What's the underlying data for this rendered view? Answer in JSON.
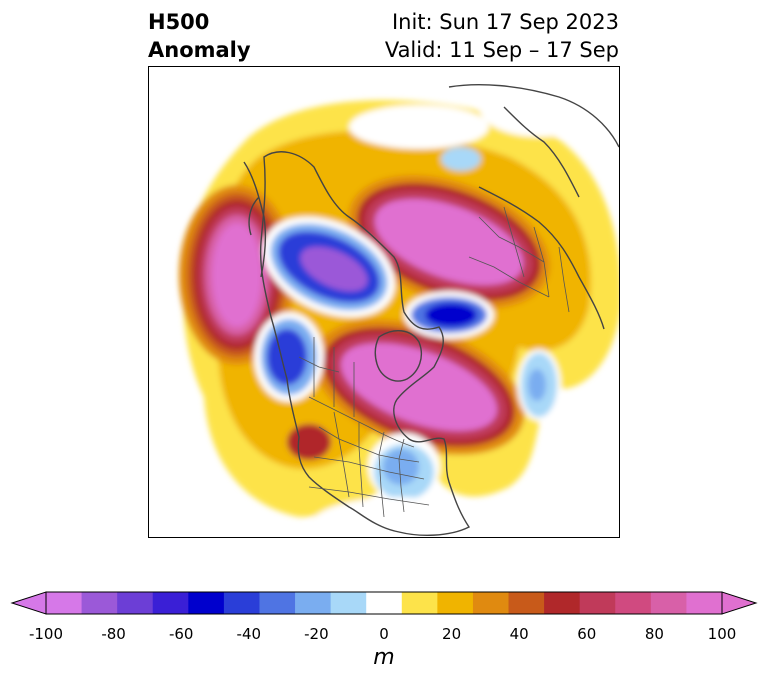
{
  "header": {
    "title_line1": "H500",
    "title_line2": "Anomaly",
    "init_text": "Init: Sun 17 Sep 2023",
    "valid_text": "Valid: 11 Sep – 17 Sep"
  },
  "colorbar": {
    "unit": "m",
    "ticks": [
      "-100",
      "-80",
      "-60",
      "-40",
      "-20",
      "0",
      "20",
      "40",
      "60",
      "80",
      "100"
    ],
    "colors": [
      "#d678e8",
      "#9b59d8",
      "#6c3ed6",
      "#3a1fd6",
      "#0000cd",
      "#2a3ed8",
      "#4f74e3",
      "#7aadf0",
      "#a8d8f8",
      "#ffffff",
      "#fde34a",
      "#f0b400",
      "#e08a10",
      "#c85a1a",
      "#b0282a",
      "#c03a5a",
      "#d04a80",
      "#d860a8",
      "#e070d0"
    ]
  },
  "map": {
    "projection": "north-polar stereographic",
    "features": [
      "coastlines",
      "country-borders",
      "us-state-borders",
      "canadian-province-borders"
    ],
    "anomaly_centers": [
      {
        "name": "gulf-of-alaska-ridge",
        "sign": "positive",
        "peak_m": 100
      },
      {
        "name": "siberia-ridge",
        "sign": "positive",
        "peak_m": 100
      },
      {
        "name": "canada-atlantic-ridge",
        "sign": "positive",
        "peak_m": 100
      },
      {
        "name": "hudson-bay-ridge",
        "sign": "positive",
        "peak_m": 90
      },
      {
        "name": "southwest-us-ridge",
        "sign": "positive",
        "peak_m": 60
      },
      {
        "name": "yukon-trough",
        "sign": "negative",
        "peak_m": -70
      },
      {
        "name": "barents-trough",
        "sign": "negative",
        "peak_m": -60
      },
      {
        "name": "western-canada-trough",
        "sign": "negative",
        "peak_m": -60
      },
      {
        "name": "eastern-us-trough",
        "sign": "negative",
        "peak_m": -30
      },
      {
        "name": "atlantic-trough",
        "sign": "negative",
        "peak_m": -30
      },
      {
        "name": "arctic-trough",
        "sign": "negative",
        "peak_m": -20
      }
    ]
  }
}
